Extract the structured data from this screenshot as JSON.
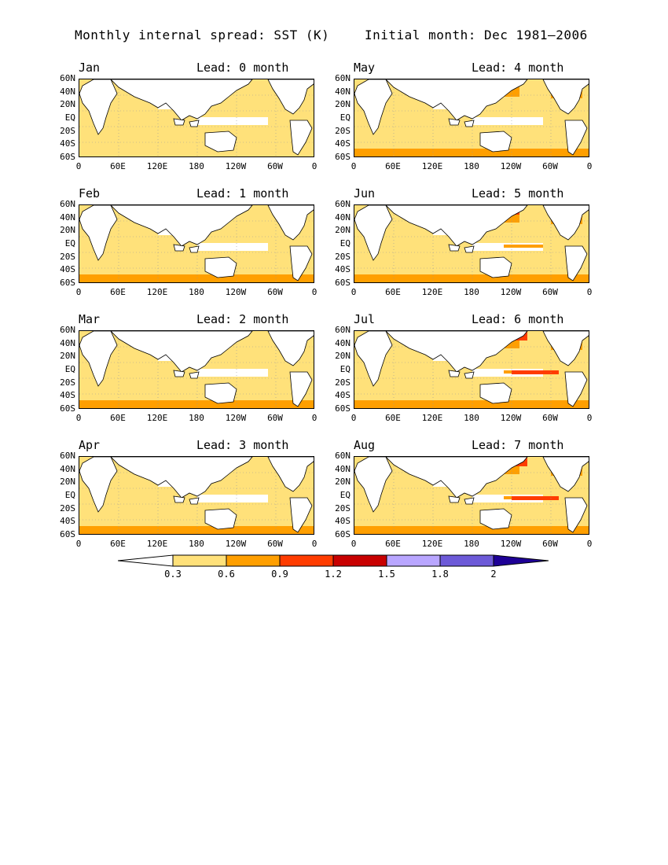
{
  "title_left": "Monthly internal spread: SST (K)",
  "title_right": "Initial month: Dec 1981–2006",
  "lat_labels": [
    "60N",
    "40N",
    "20N",
    "EQ",
    "20S",
    "40S",
    "60S"
  ],
  "lon_labels": [
    "0",
    "60E",
    "120E",
    "180",
    "120W",
    "60W",
    "0"
  ],
  "panels": [
    {
      "month": "Jan",
      "lead": "Lead: 0 month",
      "level": 0
    },
    {
      "month": "May",
      "lead": "Lead: 4 month",
      "level": 2
    },
    {
      "month": "Feb",
      "lead": "Lead: 1 month",
      "level": 1
    },
    {
      "month": "Jun",
      "lead": "Lead: 5 month",
      "level": 3
    },
    {
      "month": "Mar",
      "lead": "Lead: 2 month",
      "level": 1
    },
    {
      "month": "Jul",
      "lead": "Lead: 6 month",
      "level": 4
    },
    {
      "month": "Apr",
      "lead": "Lead: 3 month",
      "level": 1
    },
    {
      "month": "Aug",
      "lead": "Lead: 7 month",
      "level": 4
    }
  ],
  "colorbar": {
    "labels": [
      "0.3",
      "0.6",
      "0.9",
      "1.2",
      "1.5",
      "1.8",
      "2"
    ],
    "colors": [
      "#ffffff",
      "#ffe17a",
      "#ff9f00",
      "#ff3c00",
      "#c80000",
      "#b9a6ff",
      "#6d5ad8",
      "#1e0096"
    ]
  }
}
